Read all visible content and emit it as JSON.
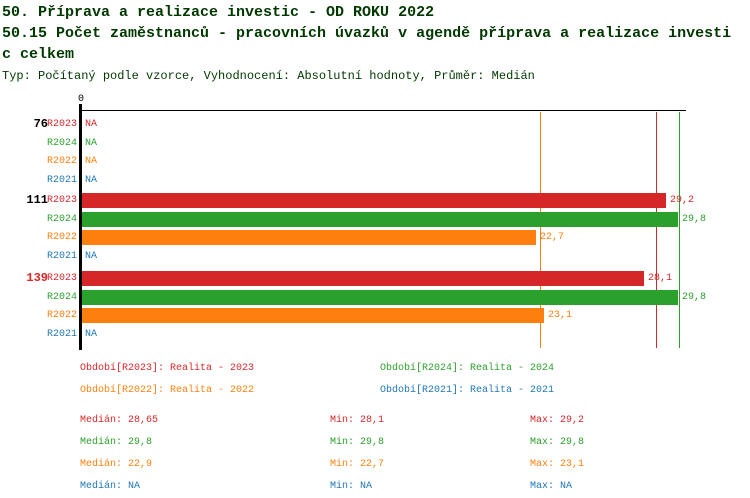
{
  "header": {
    "title": "50. Příprava a realizace investic - OD ROKU 2022",
    "subtitle_line1": "50.15 Počet zaměstnanců - pracovních úvazků v agendě příprava a realizace investi",
    "subtitle_line2": "c celkem",
    "meta": "Typ: Počítaný podle vzorce, Vyhodnocení: Absolutní hodnoty, Průměr: Medián",
    "title_color": "#003800"
  },
  "chart_data": {
    "type": "bar",
    "orientation": "horizontal",
    "title": "50. Příprava a realizace investic - OD ROKU 2022",
    "subtitle": "50.15 Počet zaměstnanců - pracovních úvazků v agendě příprava a realizace investic celkem",
    "value_axis": {
      "zero_tick_label": "0",
      "min": 0
    },
    "categories": [
      "76",
      "111",
      "139"
    ],
    "highlighted_category": "139",
    "na_label": "NA",
    "series": [
      {
        "name": "R2023",
        "legend": "Období[R2023]: Realita - 2023",
        "color": "#d62728",
        "values": [
          null,
          29.2,
          28.1
        ],
        "value_labels": [
          "NA",
          "29,2",
          "28,1"
        ],
        "median": 28.65
      },
      {
        "name": "R2024",
        "legend": "Období[R2024]: Realita - 2024",
        "color": "#2ca02c",
        "values": [
          null,
          29.8,
          29.8
        ],
        "value_labels": [
          "NA",
          "29,8",
          "29,8"
        ],
        "median": 29.8
      },
      {
        "name": "R2022",
        "legend": "Období[R2022]: Realita - 2022",
        "color": "#ff7f0e",
        "values": [
          null,
          22.7,
          23.1
        ],
        "value_labels": [
          "NA",
          "22,7",
          "23,1"
        ],
        "median": 22.9
      },
      {
        "name": "R2021",
        "legend": "Období[R2021]: Realita - 2021",
        "color": "#1f77b4",
        "values": [
          null,
          null,
          null
        ],
        "value_labels": [
          "NA",
          "NA",
          "NA"
        ],
        "median": null
      }
    ]
  },
  "legend": {
    "items": [
      {
        "label": "Období[R2023]: Realita - 2023",
        "color": "#d62728"
      },
      {
        "label": "Období[R2024]: Realita - 2024",
        "color": "#2ca02c"
      },
      {
        "label": "Období[R2022]: Realita - 2022",
        "color": "#ff7f0e"
      },
      {
        "label": "Období[R2021]: Realita - 2021",
        "color": "#1f77b4"
      }
    ]
  },
  "stats": {
    "rows": [
      {
        "color": "#d62728",
        "median": "Medián: 28,65",
        "min": "Min: 28,1",
        "max": "Max: 29,2"
      },
      {
        "color": "#2ca02c",
        "median": "Medián: 29,8",
        "min": "Min: 29,8",
        "max": "Max: 29,8"
      },
      {
        "color": "#ff7f0e",
        "median": "Medián: 22,9",
        "min": "Min: 22,7",
        "max": "Max: 23,1"
      },
      {
        "color": "#1f77b4",
        "median": "Medián: NA",
        "min": "Min: NA",
        "max": "Max: NA"
      }
    ]
  }
}
